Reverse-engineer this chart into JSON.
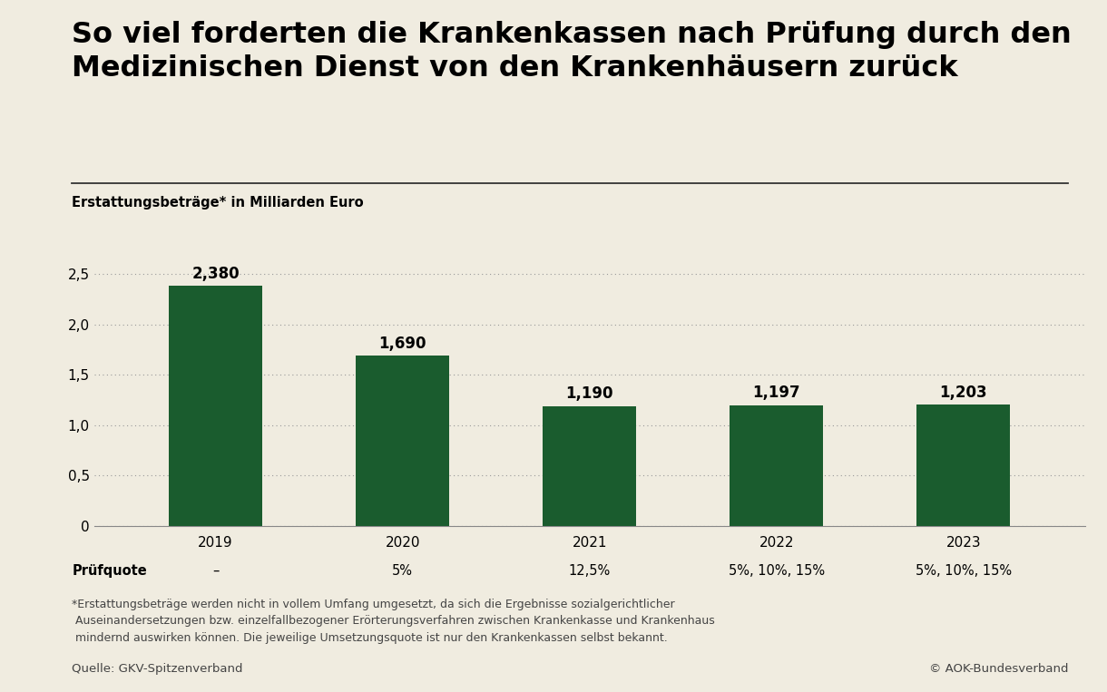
{
  "title_line1": "So viel forderten die Krankenkassen nach Prüfung durch den",
  "title_line2": "Medizinischen Dienst von den Krankenhäusern zurück",
  "subtitle": "Erstattungsbeträge* in Milliarden Euro",
  "years": [
    "2019",
    "2020",
    "2021",
    "2022",
    "2023"
  ],
  "values": [
    2.38,
    1.69,
    1.19,
    1.197,
    1.203
  ],
  "bar_labels": [
    "2,380",
    "1,690",
    "1,190",
    "1,197",
    "1,203"
  ],
  "pruefquote_label": "Prüfquote",
  "pruefquote_values": [
    "–",
    "5%",
    "12,5%",
    "5%, 10%, 15%",
    "5%, 10%, 15%"
  ],
  "bar_color": "#1a5c2e",
  "background_color": "#f0ece0",
  "yticks": [
    0,
    0.5,
    1.0,
    1.5,
    2.0,
    2.5
  ],
  "ytick_labels": [
    "0",
    "0,5",
    "1,0",
    "1,5",
    "2,0",
    "2,5"
  ],
  "ylim": [
    0,
    2.85
  ],
  "footnote": "*Erstattungsbeträge werden nicht in vollem Umfang umgesetzt, da sich die Ergebnisse sozialgerichtlicher\n Auseinandersetzungen bzw. einzelfallbezogener Erörterungsverfahren zwischen Krankenkasse und Krankenhaus\n mindernd auswirken können. Die jeweilige Umsetzungsquote ist nur den Krankenkassen selbst bekannt.",
  "source_left": "Quelle: GKV-Spitzenverband",
  "source_right": "© AOK-Bundesverband",
  "title_fontsize": 23,
  "subtitle_fontsize": 10.5,
  "bar_label_fontsize": 12,
  "axis_tick_fontsize": 11,
  "pruefquote_fontsize": 10.5,
  "footnote_fontsize": 9,
  "source_fontsize": 9.5
}
